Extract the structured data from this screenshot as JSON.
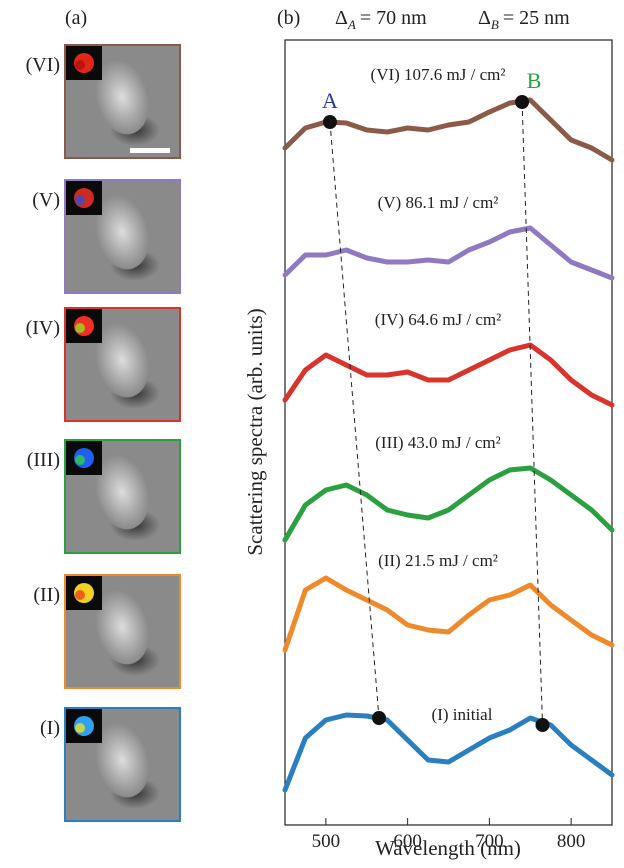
{
  "panel_a": {
    "label": "(a)",
    "images": [
      "(VI)",
      "(V)",
      "(IV)",
      "(III)",
      "(II)",
      "(I)"
    ]
  },
  "chart_data": {
    "type": "line",
    "panel_label": "(b)",
    "x_label": "Wavelength (nm)",
    "y_label": "Scattering spectra (arb. units)",
    "header": [
      {
        "symbol": "Δ",
        "sub": "A",
        "text": "= 70 nm"
      },
      {
        "symbol": "Δ",
        "sub": "B",
        "text": "= 25 nm"
      }
    ],
    "x": [
      450,
      475,
      500,
      525,
      550,
      575,
      600,
      625,
      650,
      675,
      700,
      725,
      750,
      775,
      800,
      825,
      850
    ],
    "xlim": [
      450,
      850
    ],
    "xticks": [
      500,
      600,
      700,
      800
    ],
    "ylim": [
      0,
      7.85
    ],
    "series": [
      {
        "name": "(I) initial",
        "color": "#2a7fc0",
        "values": [
          0.35,
          0.87,
          1.05,
          1.1,
          1.09,
          1.05,
          0.85,
          0.65,
          0.63,
          0.75,
          0.87,
          0.95,
          1.07,
          1.0,
          0.8,
          0.65,
          0.5
        ]
      },
      {
        "name": "(II) 21.5 mJ / cm²",
        "color": "#ee8a2a",
        "values": [
          1.75,
          2.35,
          2.47,
          2.35,
          2.25,
          2.15,
          2.0,
          1.95,
          1.93,
          2.1,
          2.25,
          2.3,
          2.4,
          2.2,
          2.05,
          1.9,
          1.8
        ]
      },
      {
        "name": "(III) 43.0 mJ / cm²",
        "color": "#2aa040",
        "values": [
          2.85,
          3.2,
          3.35,
          3.4,
          3.3,
          3.15,
          3.1,
          3.07,
          3.15,
          3.3,
          3.45,
          3.55,
          3.57,
          3.45,
          3.3,
          3.15,
          2.95
        ]
      },
      {
        "name": "(IV) 64.6 mJ / cm²",
        "color": "#d8342c",
        "values": [
          4.25,
          4.55,
          4.7,
          4.6,
          4.5,
          4.5,
          4.53,
          4.45,
          4.45,
          4.55,
          4.65,
          4.75,
          4.8,
          4.65,
          4.45,
          4.3,
          4.2
        ]
      },
      {
        "name": "(V) 86.1 mJ / cm²",
        "color": "#8f7ac2",
        "values": [
          5.5,
          5.7,
          5.7,
          5.75,
          5.67,
          5.63,
          5.63,
          5.65,
          5.63,
          5.75,
          5.83,
          5.93,
          5.97,
          5.8,
          5.63,
          5.55,
          5.47
        ]
      },
      {
        "name": "(VI) 107.6 mJ / cm²",
        "color": "#8c5a48",
        "values": [
          6.77,
          6.97,
          7.03,
          7.02,
          6.95,
          6.93,
          6.97,
          6.95,
          7.0,
          7.03,
          7.13,
          7.22,
          7.25,
          7.05,
          6.85,
          6.77,
          6.65
        ]
      }
    ],
    "peak_lines": [
      {
        "label": "A",
        "color": "#2a3a9a",
        "x": [
          505,
          565
        ],
        "y": [
          7.03,
          1.07
        ]
      },
      {
        "label": "B",
        "color": "#2aa040",
        "x": [
          740,
          765
        ],
        "y": [
          7.23,
          1.0
        ]
      }
    ]
  }
}
